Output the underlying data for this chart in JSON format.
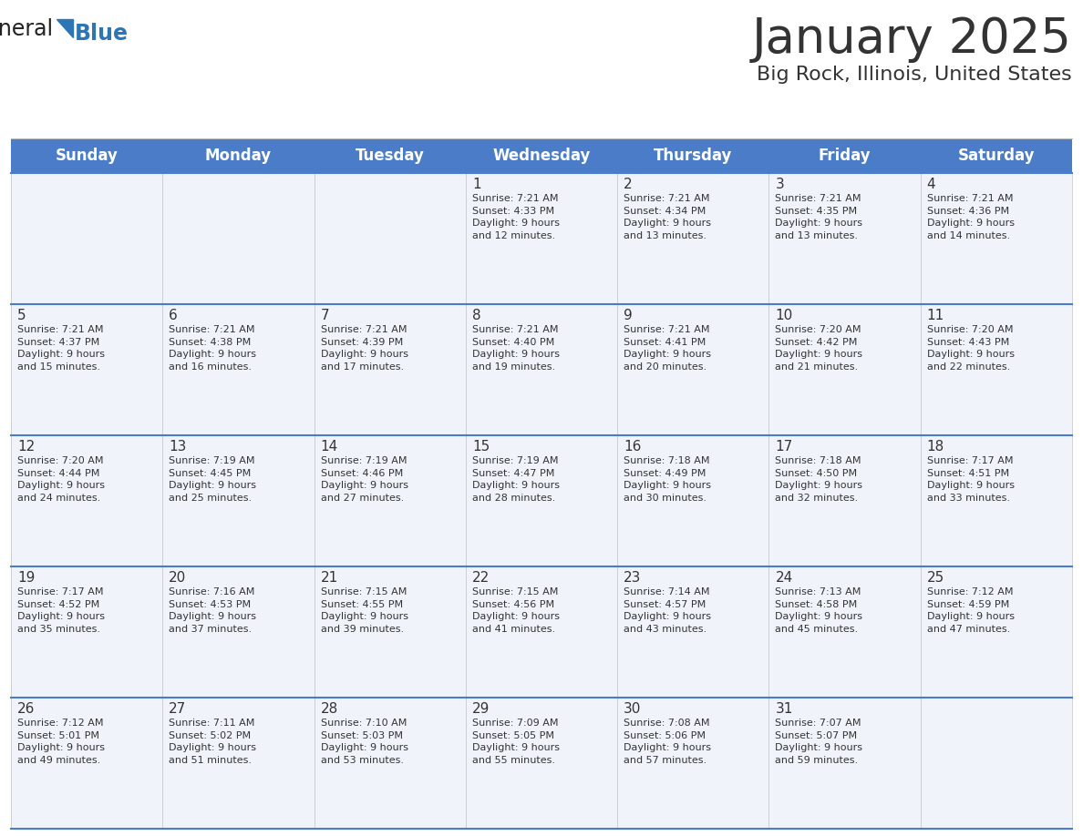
{
  "title": "January 2025",
  "subtitle": "Big Rock, Illinois, United States",
  "header_color": "#4a7cc7",
  "header_text_color": "#FFFFFF",
  "days_of_week": [
    "Sunday",
    "Monday",
    "Tuesday",
    "Wednesday",
    "Thursday",
    "Friday",
    "Saturday"
  ],
  "bg_color": "#FFFFFF",
  "cell_bg_even": "#F0F4FA",
  "cell_bg_odd": "#FFFFFF",
  "cell_border_color": "#4a7cc7",
  "day_number_color": "#333333",
  "info_text_color": "#333333",
  "logo_general_color": "#222222",
  "logo_blue_color": "#2E75B6",
  "weeks": [
    [
      {
        "day": null,
        "info": null
      },
      {
        "day": null,
        "info": null
      },
      {
        "day": null,
        "info": null
      },
      {
        "day": 1,
        "info": "Sunrise: 7:21 AM\nSunset: 4:33 PM\nDaylight: 9 hours\nand 12 minutes."
      },
      {
        "day": 2,
        "info": "Sunrise: 7:21 AM\nSunset: 4:34 PM\nDaylight: 9 hours\nand 13 minutes."
      },
      {
        "day": 3,
        "info": "Sunrise: 7:21 AM\nSunset: 4:35 PM\nDaylight: 9 hours\nand 13 minutes."
      },
      {
        "day": 4,
        "info": "Sunrise: 7:21 AM\nSunset: 4:36 PM\nDaylight: 9 hours\nand 14 minutes."
      }
    ],
    [
      {
        "day": 5,
        "info": "Sunrise: 7:21 AM\nSunset: 4:37 PM\nDaylight: 9 hours\nand 15 minutes."
      },
      {
        "day": 6,
        "info": "Sunrise: 7:21 AM\nSunset: 4:38 PM\nDaylight: 9 hours\nand 16 minutes."
      },
      {
        "day": 7,
        "info": "Sunrise: 7:21 AM\nSunset: 4:39 PM\nDaylight: 9 hours\nand 17 minutes."
      },
      {
        "day": 8,
        "info": "Sunrise: 7:21 AM\nSunset: 4:40 PM\nDaylight: 9 hours\nand 19 minutes."
      },
      {
        "day": 9,
        "info": "Sunrise: 7:21 AM\nSunset: 4:41 PM\nDaylight: 9 hours\nand 20 minutes."
      },
      {
        "day": 10,
        "info": "Sunrise: 7:20 AM\nSunset: 4:42 PM\nDaylight: 9 hours\nand 21 minutes."
      },
      {
        "day": 11,
        "info": "Sunrise: 7:20 AM\nSunset: 4:43 PM\nDaylight: 9 hours\nand 22 minutes."
      }
    ],
    [
      {
        "day": 12,
        "info": "Sunrise: 7:20 AM\nSunset: 4:44 PM\nDaylight: 9 hours\nand 24 minutes."
      },
      {
        "day": 13,
        "info": "Sunrise: 7:19 AM\nSunset: 4:45 PM\nDaylight: 9 hours\nand 25 minutes."
      },
      {
        "day": 14,
        "info": "Sunrise: 7:19 AM\nSunset: 4:46 PM\nDaylight: 9 hours\nand 27 minutes."
      },
      {
        "day": 15,
        "info": "Sunrise: 7:19 AM\nSunset: 4:47 PM\nDaylight: 9 hours\nand 28 minutes."
      },
      {
        "day": 16,
        "info": "Sunrise: 7:18 AM\nSunset: 4:49 PM\nDaylight: 9 hours\nand 30 minutes."
      },
      {
        "day": 17,
        "info": "Sunrise: 7:18 AM\nSunset: 4:50 PM\nDaylight: 9 hours\nand 32 minutes."
      },
      {
        "day": 18,
        "info": "Sunrise: 7:17 AM\nSunset: 4:51 PM\nDaylight: 9 hours\nand 33 minutes."
      }
    ],
    [
      {
        "day": 19,
        "info": "Sunrise: 7:17 AM\nSunset: 4:52 PM\nDaylight: 9 hours\nand 35 minutes."
      },
      {
        "day": 20,
        "info": "Sunrise: 7:16 AM\nSunset: 4:53 PM\nDaylight: 9 hours\nand 37 minutes."
      },
      {
        "day": 21,
        "info": "Sunrise: 7:15 AM\nSunset: 4:55 PM\nDaylight: 9 hours\nand 39 minutes."
      },
      {
        "day": 22,
        "info": "Sunrise: 7:15 AM\nSunset: 4:56 PM\nDaylight: 9 hours\nand 41 minutes."
      },
      {
        "day": 23,
        "info": "Sunrise: 7:14 AM\nSunset: 4:57 PM\nDaylight: 9 hours\nand 43 minutes."
      },
      {
        "day": 24,
        "info": "Sunrise: 7:13 AM\nSunset: 4:58 PM\nDaylight: 9 hours\nand 45 minutes."
      },
      {
        "day": 25,
        "info": "Sunrise: 7:12 AM\nSunset: 4:59 PM\nDaylight: 9 hours\nand 47 minutes."
      }
    ],
    [
      {
        "day": 26,
        "info": "Sunrise: 7:12 AM\nSunset: 5:01 PM\nDaylight: 9 hours\nand 49 minutes."
      },
      {
        "day": 27,
        "info": "Sunrise: 7:11 AM\nSunset: 5:02 PM\nDaylight: 9 hours\nand 51 minutes."
      },
      {
        "day": 28,
        "info": "Sunrise: 7:10 AM\nSunset: 5:03 PM\nDaylight: 9 hours\nand 53 minutes."
      },
      {
        "day": 29,
        "info": "Sunrise: 7:09 AM\nSunset: 5:05 PM\nDaylight: 9 hours\nand 55 minutes."
      },
      {
        "day": 30,
        "info": "Sunrise: 7:08 AM\nSunset: 5:06 PM\nDaylight: 9 hours\nand 57 minutes."
      },
      {
        "day": 31,
        "info": "Sunrise: 7:07 AM\nSunset: 5:07 PM\nDaylight: 9 hours\nand 59 minutes."
      },
      {
        "day": null,
        "info": null
      }
    ]
  ],
  "fig_width": 11.88,
  "fig_height": 9.18,
  "dpi": 100,
  "title_fontsize": 38,
  "subtitle_fontsize": 16,
  "header_fontsize": 12,
  "day_num_fontsize": 11,
  "info_fontsize": 8
}
